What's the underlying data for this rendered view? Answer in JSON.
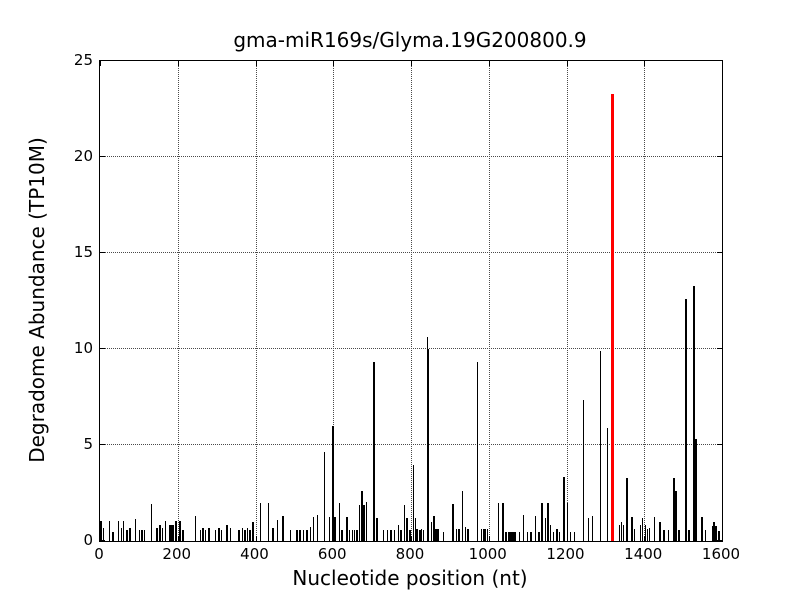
{
  "title": "gma-miR169s/Glyma.19G200800.9",
  "colors": {
    "bar": "#000000",
    "highlight": "#ff0000",
    "grid": "#4a4a4a",
    "axis": "#000000",
    "background": "#ffffff"
  },
  "chart_data": {
    "type": "bar",
    "title": "gma-miR169s/Glyma.19G200800.9",
    "xlabel": "Nucleotide position (nt)",
    "ylabel": "Degradome Abundance (TP10M)",
    "xlim": [
      0,
      1600
    ],
    "ylim": [
      0,
      25
    ],
    "xticks": [
      0,
      200,
      400,
      600,
      800,
      1000,
      1200,
      1400,
      1600
    ],
    "yticks": [
      0,
      5,
      10,
      15,
      20,
      25
    ],
    "xtick_labels": [
      "0",
      "200",
      "400",
      "600",
      "800",
      "1000",
      "1200",
      "1400",
      "1600"
    ],
    "ytick_labels": [
      "0",
      "5",
      "10",
      "15",
      "20",
      "25"
    ],
    "grid": "dotted-both-axes",
    "legend": "none",
    "bar_color": "#000000",
    "highlight_point": {
      "x": 1318,
      "y": 23.3,
      "color": "#ff0000"
    },
    "points": [
      [
        2,
        1.05
      ],
      [
        9,
        0.67
      ],
      [
        24,
        1.05
      ],
      [
        34,
        0.49
      ],
      [
        47,
        1.05
      ],
      [
        55,
        0.67
      ],
      [
        61,
        1.05
      ],
      [
        70,
        0.58
      ],
      [
        77,
        0.67
      ],
      [
        91,
        1.16
      ],
      [
        101,
        0.58
      ],
      [
        108,
        0.58
      ],
      [
        114,
        0.58
      ],
      [
        133,
        1.93
      ],
      [
        146,
        0.67
      ],
      [
        154,
        0.84
      ],
      [
        161,
        0.67
      ],
      [
        168,
        1.05
      ],
      [
        180,
        0.84
      ],
      [
        184,
        0.84
      ],
      [
        188,
        0.84
      ],
      [
        195,
        1.05
      ],
      [
        206,
        1.05
      ],
      [
        214,
        0.58
      ],
      [
        246,
        1.28
      ],
      [
        259,
        0.58
      ],
      [
        265,
        0.67
      ],
      [
        272,
        0.58
      ],
      [
        280,
        0.67
      ],
      [
        297,
        0.58
      ],
      [
        306,
        0.67
      ],
      [
        313,
        0.58
      ],
      [
        327,
        0.84
      ],
      [
        336,
        0.67
      ],
      [
        357,
        0.58
      ],
      [
        366,
        0.67
      ],
      [
        373,
        0.58
      ],
      [
        379,
        0.67
      ],
      [
        386,
        0.58
      ],
      [
        394,
        1.0
      ],
      [
        413,
        2.0
      ],
      [
        434,
        2.0
      ],
      [
        445,
        0.67
      ],
      [
        456,
        1.1
      ],
      [
        471,
        1.28
      ],
      [
        490,
        0.58
      ],
      [
        507,
        0.58
      ],
      [
        515,
        0.58
      ],
      [
        524,
        0.58
      ],
      [
        532,
        0.58
      ],
      [
        541,
        0.75
      ],
      [
        549,
        1.26
      ],
      [
        560,
        1.35
      ],
      [
        578,
        4.65
      ],
      [
        590,
        1.23
      ],
      [
        599,
        6.0
      ],
      [
        605,
        1.23
      ],
      [
        616,
        1.96
      ],
      [
        622,
        0.56
      ],
      [
        635,
        1.26
      ],
      [
        642,
        0.56
      ],
      [
        650,
        0.56
      ],
      [
        655,
        0.56
      ],
      [
        661,
        0.56
      ],
      [
        668,
        1.88
      ],
      [
        674,
        2.58
      ],
      [
        679,
        1.88
      ],
      [
        686,
        2.05
      ],
      [
        705,
        9.3
      ],
      [
        713,
        1.21
      ],
      [
        729,
        0.56
      ],
      [
        739,
        0.56
      ],
      [
        748,
        0.56
      ],
      [
        757,
        0.56
      ],
      [
        768,
        0.82
      ],
      [
        774,
        0.56
      ],
      [
        783,
        1.88
      ],
      [
        790,
        1.18
      ],
      [
        797,
        0.56
      ],
      [
        806,
        3.98
      ],
      [
        812,
        1.18
      ],
      [
        815,
        0.65
      ],
      [
        823,
        0.56
      ],
      [
        827,
        0.65
      ],
      [
        832,
        0.56
      ],
      [
        843,
        10.6
      ],
      [
        845,
        10.0
      ],
      [
        853,
        1.0
      ],
      [
        859,
        1.32
      ],
      [
        864,
        0.65
      ],
      [
        870,
        0.65
      ],
      [
        883,
        0.47
      ],
      [
        908,
        1.91
      ],
      [
        917,
        0.65
      ],
      [
        924,
        0.65
      ],
      [
        932,
        2.63
      ],
      [
        940,
        0.74
      ],
      [
        947,
        0.65
      ],
      [
        971,
        9.3
      ],
      [
        981,
        0.65
      ],
      [
        986,
        0.6
      ],
      [
        990,
        0.6
      ],
      [
        997,
        0.65
      ],
      [
        1025,
        1.96
      ],
      [
        1037,
        1.96
      ],
      [
        1045,
        0.47
      ],
      [
        1052,
        0.47
      ],
      [
        1057,
        0.47
      ],
      [
        1062,
        0.47
      ],
      [
        1067,
        0.47
      ],
      [
        1079,
        0.47
      ],
      [
        1090,
        1.35
      ],
      [
        1100,
        0.47
      ],
      [
        1109,
        0.47
      ],
      [
        1120,
        1.32
      ],
      [
        1129,
        0.47
      ],
      [
        1137,
        1.96
      ],
      [
        1146,
        1.18
      ],
      [
        1152,
        1.96
      ],
      [
        1159,
        0.82
      ],
      [
        1167,
        0.47
      ],
      [
        1175,
        0.65
      ],
      [
        1182,
        0.47
      ],
      [
        1194,
        3.32
      ],
      [
        1202,
        1.96
      ],
      [
        1210,
        0.47
      ],
      [
        1220,
        0.47
      ],
      [
        1244,
        7.35
      ],
      [
        1257,
        1.18
      ],
      [
        1267,
        1.32
      ],
      [
        1287,
        9.9
      ],
      [
        1305,
        5.9
      ],
      [
        1336,
        0.82
      ],
      [
        1342,
        1.0
      ],
      [
        1347,
        0.82
      ],
      [
        1355,
        3.28
      ],
      [
        1368,
        1.26
      ],
      [
        1375,
        0.6
      ],
      [
        1390,
        0.82
      ],
      [
        1396,
        1.18
      ],
      [
        1403,
        0.82
      ],
      [
        1408,
        0.6
      ],
      [
        1413,
        0.7
      ],
      [
        1426,
        1.26
      ],
      [
        1441,
        1.0
      ],
      [
        1451,
        0.56
      ],
      [
        1462,
        0.56
      ],
      [
        1477,
        3.3
      ],
      [
        1482,
        2.6
      ],
      [
        1490,
        0.56
      ],
      [
        1507,
        12.6
      ],
      [
        1515,
        0.56
      ],
      [
        1528,
        13.3
      ],
      [
        1533,
        5.3
      ],
      [
        1548,
        1.26
      ],
      [
        1558,
        0.56
      ],
      [
        1575,
        0.8
      ],
      [
        1580,
        1.0
      ],
      [
        1585,
        0.8
      ],
      [
        1592,
        0.5
      ]
    ]
  }
}
